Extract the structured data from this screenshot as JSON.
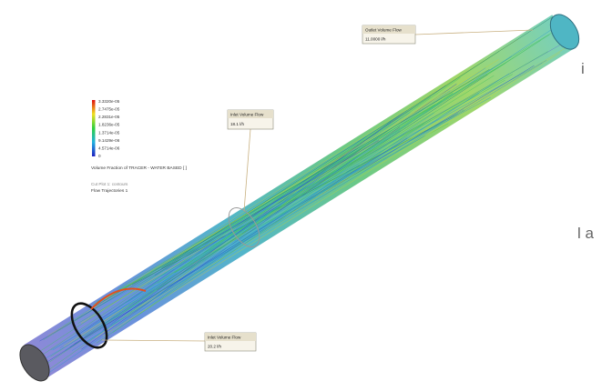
{
  "legend": {
    "labels": [
      "3.3320e-05",
      "2.7475e-05",
      "2.2831e-05",
      "1.8236e-05",
      "1.3714e-05",
      "9.1429e-06",
      "4.5714e-06",
      "0"
    ],
    "caption": "Volume Fraction of TRACER - WATER BASED [ ]",
    "notes": [
      "Cut Plot 1: contours",
      "Flow Trajectories 1"
    ]
  },
  "callouts": [
    {
      "title": "Outlet Volume Flow",
      "value": "11.0000 l/h"
    },
    {
      "title": "Inlet Volume Flow",
      "value": "18.1 l/h"
    },
    {
      "title": "Inlet Volume Flow",
      "value": "20.2 l/h"
    }
  ],
  "side_text": [
    "i",
    "l a"
  ]
}
